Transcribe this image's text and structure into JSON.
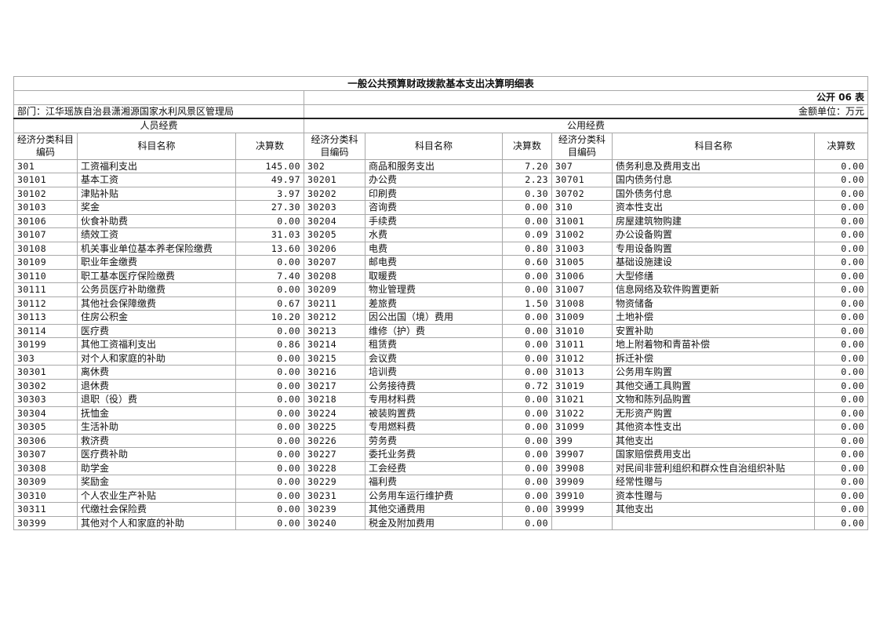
{
  "title": "一般公共预算财政拨款基本支出决算明细表",
  "table_no": "公开 06 表",
  "department": "部门：江华瑶族自治县潇湘源国家水利风景区管理局",
  "unit": "金额单位：万元",
  "groups": {
    "personnel": "人员经费",
    "public": "公用经费"
  },
  "headers": [
    "经济分类科目编码",
    "科目名称",
    "决算数",
    "经济分类科目编码",
    "科目名称",
    "决算数",
    "经济分类科目编码",
    "科目名称",
    "决算数"
  ],
  "rows": [
    [
      "301",
      "工资福利支出",
      "145.00",
      "302",
      "商品和服务支出",
      "7.20",
      "307",
      "债务利息及费用支出",
      "0.00"
    ],
    [
      "30101",
      "基本工资",
      "49.97",
      "30201",
      "办公费",
      "2.23",
      "30701",
      "国内债务付息",
      "0.00"
    ],
    [
      "30102",
      "津贴补贴",
      "3.97",
      "30202",
      "印刷费",
      "0.30",
      "30702",
      "国外债务付息",
      "0.00"
    ],
    [
      "30103",
      "奖金",
      "27.30",
      "30203",
      "咨询费",
      "0.00",
      "310",
      "资本性支出",
      "0.00"
    ],
    [
      "30106",
      "伙食补助费",
      "0.00",
      "30204",
      "手续费",
      "0.00",
      "31001",
      "房屋建筑物购建",
      "0.00"
    ],
    [
      "30107",
      "绩效工资",
      "31.03",
      "30205",
      "水费",
      "0.09",
      "31002",
      "办公设备购置",
      "0.00"
    ],
    [
      "30108",
      "机关事业单位基本养老保险缴费",
      "13.60",
      "30206",
      "电费",
      "0.80",
      "31003",
      "专用设备购置",
      "0.00"
    ],
    [
      "30109",
      "职业年金缴费",
      "0.00",
      "30207",
      "邮电费",
      "0.60",
      "31005",
      "基础设施建设",
      "0.00"
    ],
    [
      "30110",
      "职工基本医疗保险缴费",
      "7.40",
      "30208",
      "取暖费",
      "0.00",
      "31006",
      "大型修缮",
      "0.00"
    ],
    [
      "30111",
      "公务员医疗补助缴费",
      "0.00",
      "30209",
      "物业管理费",
      "0.00",
      "31007",
      "信息网络及软件购置更新",
      "0.00"
    ],
    [
      "30112",
      "其他社会保障缴费",
      "0.67",
      "30211",
      "差旅费",
      "1.50",
      "31008",
      "物资储备",
      "0.00"
    ],
    [
      "30113",
      "住房公积金",
      "10.20",
      "30212",
      "因公出国（境）费用",
      "0.00",
      "31009",
      "土地补偿",
      "0.00"
    ],
    [
      "30114",
      "医疗费",
      "0.00",
      "30213",
      "维修（护）费",
      "0.00",
      "31010",
      "安置补助",
      "0.00"
    ],
    [
      "30199",
      "其他工资福利支出",
      "0.86",
      "30214",
      "租赁费",
      "0.00",
      "31011",
      "地上附着物和青苗补偿",
      "0.00"
    ],
    [
      "303",
      "对个人和家庭的补助",
      "0.00",
      "30215",
      "会议费",
      "0.00",
      "31012",
      "拆迁补偿",
      "0.00"
    ],
    [
      "30301",
      "离休费",
      "0.00",
      "30216",
      "培训费",
      "0.00",
      "31013",
      "公务用车购置",
      "0.00"
    ],
    [
      "30302",
      "退休费",
      "0.00",
      "30217",
      "公务接待费",
      "0.72",
      "31019",
      "其他交通工具购置",
      "0.00"
    ],
    [
      "30303",
      "退职（役）费",
      "0.00",
      "30218",
      "专用材料费",
      "0.00",
      "31021",
      "文物和陈列品购置",
      "0.00"
    ],
    [
      "30304",
      "抚恤金",
      "0.00",
      "30224",
      "被装购置费",
      "0.00",
      "31022",
      "无形资产购置",
      "0.00"
    ],
    [
      "30305",
      "生活补助",
      "0.00",
      "30225",
      "专用燃料费",
      "0.00",
      "31099",
      "其他资本性支出",
      "0.00"
    ],
    [
      "30306",
      "救济费",
      "0.00",
      "30226",
      "劳务费",
      "0.00",
      "399",
      "其他支出",
      "0.00"
    ],
    [
      "30307",
      "医疗费补助",
      "0.00",
      "30227",
      "委托业务费",
      "0.00",
      "39907",
      "国家赔偿费用支出",
      "0.00"
    ],
    [
      "30308",
      "助学金",
      "0.00",
      "30228",
      "工会经费",
      "0.00",
      "39908",
      "对民间非营利组织和群众性自治组织补贴",
      "0.00"
    ],
    [
      "30309",
      "奖励金",
      "0.00",
      "30229",
      "福利费",
      "0.00",
      "39909",
      "经常性赠与",
      "0.00"
    ],
    [
      "30310",
      "个人农业生产补贴",
      "0.00",
      "30231",
      "公务用车运行维护费",
      "0.00",
      "39910",
      "资本性赠与",
      "0.00"
    ],
    [
      "30311",
      "代缴社会保险费",
      "0.00",
      "30239",
      "其他交通费用",
      "0.00",
      "39999",
      "其他支出",
      "0.00"
    ],
    [
      "30399",
      "其他对个人和家庭的补助",
      "0.00",
      "30240",
      "税金及附加费用",
      "0.00",
      "",
      "",
      "0.00"
    ]
  ]
}
